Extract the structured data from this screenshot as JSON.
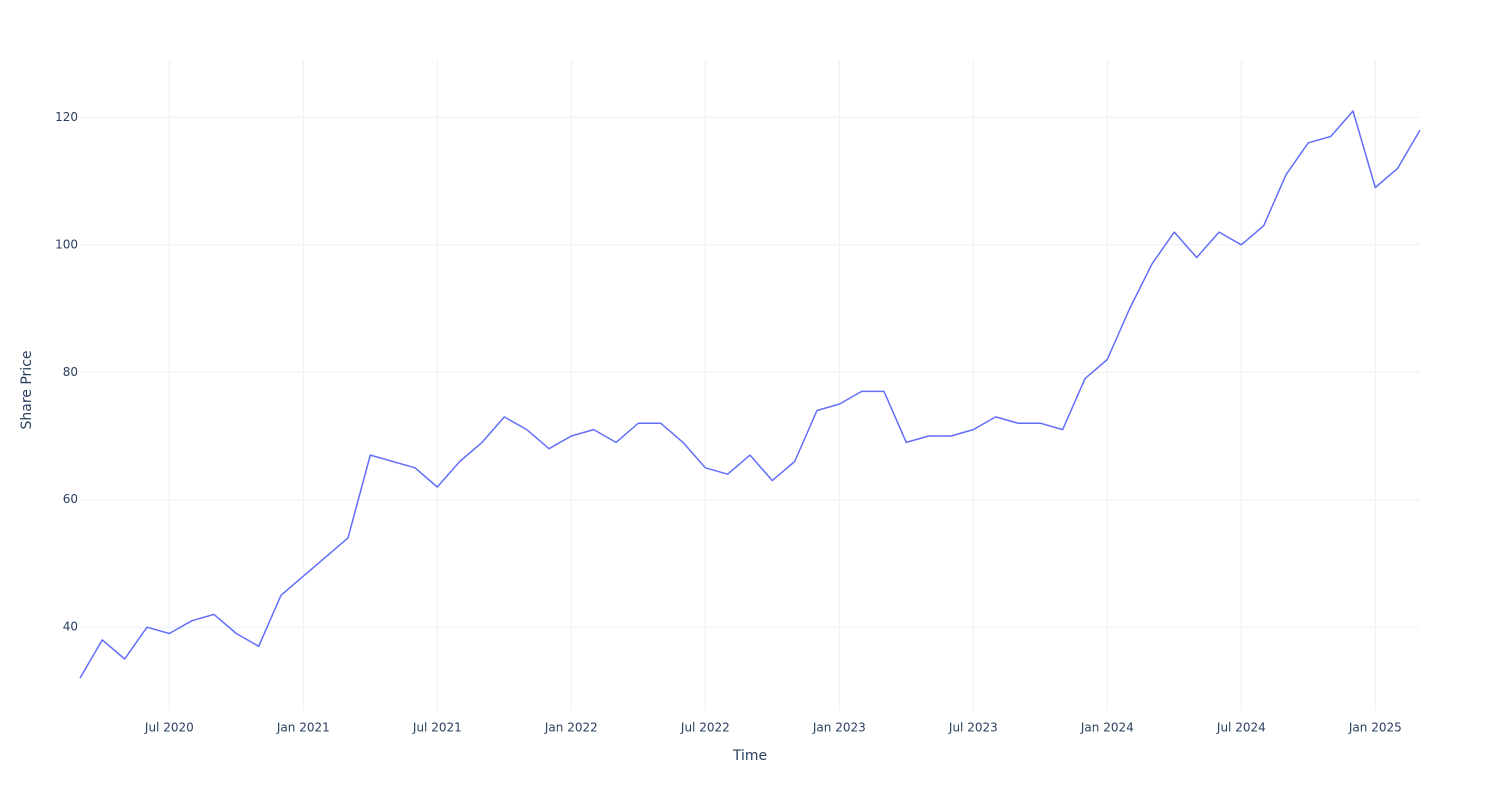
{
  "chart_data": {
    "type": "line",
    "x_label": "Time",
    "y_label": "Share Price",
    "x": [
      "2020-03",
      "2020-04",
      "2020-05",
      "2020-06",
      "2020-07",
      "2020-08",
      "2020-09",
      "2020-10",
      "2020-11",
      "2020-12",
      "2021-01",
      "2021-02",
      "2021-03",
      "2021-04",
      "2021-05",
      "2021-06",
      "2021-07",
      "2021-08",
      "2021-09",
      "2021-10",
      "2021-11",
      "2021-12",
      "2022-01",
      "2022-02",
      "2022-03",
      "2022-04",
      "2022-05",
      "2022-06",
      "2022-07",
      "2022-08",
      "2022-09",
      "2022-10",
      "2022-11",
      "2022-12",
      "2023-01",
      "2023-02",
      "2023-03",
      "2023-04",
      "2023-05",
      "2023-06",
      "2023-07",
      "2023-08",
      "2023-09",
      "2023-10",
      "2023-11",
      "2023-12",
      "2024-01",
      "2024-02",
      "2024-03",
      "2024-04",
      "2024-05",
      "2024-06",
      "2024-07",
      "2024-08",
      "2024-09",
      "2024-10",
      "2024-11",
      "2024-12",
      "2025-01",
      "2025-02",
      "2025-03"
    ],
    "series": [
      {
        "name": "Share Price",
        "color": "#636efa",
        "values": [
          32,
          38,
          35,
          40,
          39,
          41,
          42,
          39,
          37,
          45,
          48,
          51,
          54,
          67,
          66,
          65,
          62,
          66,
          69,
          73,
          71,
          68,
          70,
          71,
          69,
          72,
          72,
          69,
          65,
          64,
          67,
          63,
          66,
          74,
          75,
          77,
          77,
          69,
          70,
          70,
          71,
          73,
          72,
          72,
          71,
          79,
          82,
          90,
          97,
          102,
          98,
          102,
          100,
          103,
          111,
          116,
          117,
          121,
          109,
          112,
          118
        ]
      }
    ],
    "xlim": [
      "2020-03",
      "2025-03"
    ],
    "xticks": [
      {
        "value": "2020-07",
        "label": "Jul 2020"
      },
      {
        "value": "2021-01",
        "label": "Jan 2021"
      },
      {
        "value": "2021-07",
        "label": "Jul 2021"
      },
      {
        "value": "2022-01",
        "label": "Jan 2022"
      },
      {
        "value": "2022-07",
        "label": "Jul 2022"
      },
      {
        "value": "2023-01",
        "label": "Jan 2023"
      },
      {
        "value": "2023-07",
        "label": "Jul 2023"
      },
      {
        "value": "2024-01",
        "label": "Jan 2024"
      },
      {
        "value": "2024-07",
        "label": "Jul 2024"
      },
      {
        "value": "2025-01",
        "label": "Jan 2025"
      }
    ],
    "ylim": [
      27,
      129
    ],
    "yticks": [
      40,
      60,
      80,
      100,
      120
    ],
    "grid": true
  }
}
